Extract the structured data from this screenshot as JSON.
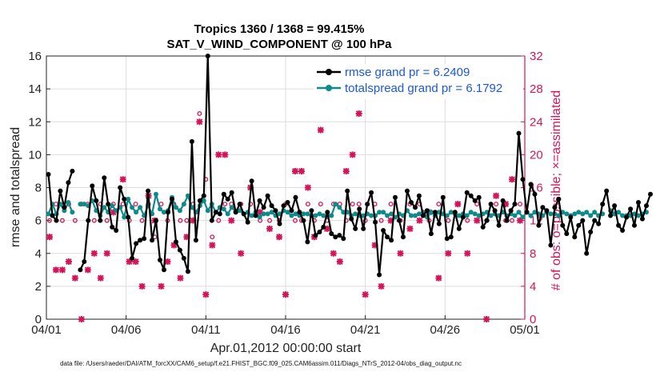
{
  "chart_data": {
    "type": "line",
    "title": "Tropics 1360 / 1368 = 99.415%",
    "subtitle": "SAT_V_WIND_COMPONENT @ 100 hPa",
    "xlabel": "Apr.01,2012 00:00:00 start",
    "ylabel": "rmse and totalspread",
    "y2label": "# of obs: o=possible; ×=assimilated",
    "footer": "data file: /Users/raeder/DAI/ATM_forcXX/CAM6_setup/f.e21.FHIST_BGC.f09_025.CAM6assim.011/Diags_NTrS_2012-04/obs_diag_output.nc",
    "x_ticks": [
      "04/01",
      "04/06",
      "04/11",
      "04/16",
      "04/21",
      "04/26",
      "05/01"
    ],
    "x_tick_days": [
      0,
      5,
      10,
      15,
      20,
      25,
      30
    ],
    "xlim": [
      0,
      30
    ],
    "ylim": [
      0,
      16
    ],
    "y_ticks": [
      "0",
      "2",
      "4",
      "6",
      "8",
      "10",
      "12",
      "14",
      "16"
    ],
    "y2lim": [
      0,
      32
    ],
    "y2_ticks": [
      "0",
      "4",
      "8",
      "12",
      "16",
      "20",
      "24",
      "28",
      "32"
    ],
    "colors": {
      "rmse": "#000000",
      "spread": "#0f8a8a",
      "obs": "#d4145a",
      "legend_text": "#1a57e6"
    },
    "series": [
      {
        "name": "rmse grand pr = 6.2409",
        "color": "#000000",
        "x0": 0.125,
        "dx": 0.25,
        "values": [
          8.8,
          6.3,
          6.0,
          7.8,
          6.8,
          8.3,
          9.0,
          null,
          3.0,
          3.5,
          6.0,
          8.1,
          7.2,
          6.0,
          8.6,
          7.0,
          5.6,
          5.4,
          8.0,
          7.3,
          6.2,
          3.7,
          4.6,
          4.8,
          4.9,
          7.8,
          4.8,
          6.0,
          3.6,
          3.0,
          6.5,
          7.3,
          4.7,
          4.2,
          3.7,
          2.9,
          10.8,
          4.8,
          7.2,
          7.5,
          16.0,
          6.0,
          6.5,
          6.4,
          7.6,
          7.3,
          7.7,
          6.5,
          7.0,
          6.4,
          5.9,
          8.4,
          6.3,
          7.2,
          6.8,
          7.5,
          6.9,
          6.6,
          5.8,
          6.9,
          7.1,
          6.6,
          7.4,
          6.5,
          6.0,
          4.7,
          6.6,
          5.1,
          5.3,
          5.6,
          6.5,
          5.2,
          5.0,
          5.1,
          4.9,
          7.8,
          6.1,
          5.5,
          6.7,
          5.5,
          7.0,
          7.7,
          5.9,
          2.7,
          5.4,
          5.0,
          4.8,
          7.4,
          6.0,
          5.0,
          7.8,
          7.1,
          6.8,
          7.5,
          6.3,
          6.6,
          5.2,
          6.5,
          5.8,
          7.4,
          4.9,
          5.0,
          6.5,
          5.5,
          6.2,
          7.7,
          7.5,
          7.2,
          7.4,
          5.6,
          6.0,
          7.0,
          6.6,
          5.7,
          7.2,
          6.0,
          6.6,
          7.0,
          11.3,
          8.5,
          6.5,
          8.2,
          7.6,
          5.7,
          6.8,
          6.6,
          4.5,
          6.8,
          7.3,
          5.7,
          5.2,
          6.2,
          5.0,
          5.7,
          6.0,
          4.0,
          5.3,
          6.0,
          5.8,
          7.0,
          7.8,
          6.3,
          6.9,
          5.7,
          5.4,
          6.2,
          6.7,
          5.7,
          7.1,
          6.1,
          6.9,
          7.6
        ]
      },
      {
        "name": "totalspread grand pr = 6.1792",
        "color": "#0f8a8a",
        "x0": 0.125,
        "dx": 0.25,
        "values": [
          6.4,
          7.0,
          6.4,
          7.0,
          6.6,
          7.1,
          6.5,
          null,
          7.0,
          7.0,
          6.9,
          7.2,
          6.6,
          6.3,
          6.8,
          6.5,
          6.9,
          6.6,
          6.8,
          6.2,
          7.3,
          6.8,
          6.5,
          6.8,
          6.3,
          6.9,
          6.4,
          7.6,
          6.7,
          6.5,
          6.6,
          7.4,
          6.8,
          6.6,
          7.0,
          7.5,
          6.8,
          6.5,
          6.9,
          7.2,
          6.6,
          7.0,
          6.5,
          6.8,
          6.7,
          6.4,
          6.8,
          6.5,
          6.6,
          6.4,
          6.5,
          6.3,
          6.5,
          6.2,
          6.4,
          6.4,
          6.5,
          6.3,
          6.4,
          6.6,
          6.5,
          6.3,
          6.4,
          6.3,
          6.4,
          6.4,
          6.3,
          6.3,
          6.4,
          6.3,
          6.3,
          6.3,
          7.0,
          6.8,
          6.5,
          6.5,
          6.3,
          6.4,
          6.3,
          6.3,
          6.4,
          6.3,
          6.3,
          6.5,
          6.5,
          6.3,
          6.4,
          6.2,
          6.4,
          6.3,
          6.6,
          6.3,
          6.3,
          6.4,
          6.5,
          6.2,
          6.5,
          6.3,
          6.5,
          6.4,
          6.3,
          6.5,
          6.4,
          6.3,
          6.4,
          6.3,
          6.5,
          6.4,
          6.3,
          6.4,
          6.5,
          6.3,
          6.4,
          6.3,
          6.5,
          6.3,
          6.4,
          6.3,
          6.5,
          6.2,
          6.5,
          6.3,
          6.5,
          6.4,
          6.3,
          6.5,
          6.4,
          6.4,
          6.3,
          6.5,
          6.4,
          6.3,
          6.4,
          6.5,
          6.4,
          6.5,
          6.3,
          6.5,
          6.3,
          6.4,
          null,
          6.6,
          6.4,
          6.5,
          6.3,
          6.3,
          6.3,
          6.4,
          6.3,
          6.4,
          6.5
        ]
      }
    ],
    "obs_counts": [
      {
        "day": 0.2,
        "possible": 12,
        "assimilated": 10
      },
      {
        "day": 0.6,
        "possible": 14,
        "assimilated": 6
      },
      {
        "day": 1.0,
        "possible": 12,
        "assimilated": 6
      },
      {
        "day": 1.4,
        "possible": 14,
        "assimilated": 7
      },
      {
        "day": 1.8,
        "possible": 12,
        "assimilated": 5
      },
      {
        "day": 2.2,
        "possible": 14,
        "assimilated": 0
      },
      {
        "day": 2.6,
        "possible": 14,
        "assimilated": 6
      },
      {
        "day": 3.0,
        "possible": 12,
        "assimilated": 8
      },
      {
        "day": 3.4,
        "possible": 14,
        "assimilated": 5
      },
      {
        "day": 3.8,
        "possible": 12,
        "assimilated": 8
      },
      {
        "day": 4.2,
        "possible": 14,
        "assimilated": 13
      },
      {
        "day": 4.8,
        "possible": 14,
        "assimilated": 17
      },
      {
        "day": 5.2,
        "possible": 12,
        "assimilated": 7
      },
      {
        "day": 5.6,
        "possible": 14,
        "assimilated": 7
      },
      {
        "day": 6.0,
        "possible": 12,
        "assimilated": 4
      },
      {
        "day": 6.4,
        "possible": 14,
        "assimilated": 15
      },
      {
        "day": 6.8,
        "possible": 10,
        "assimilated": 12
      },
      {
        "day": 7.2,
        "possible": 14,
        "assimilated": 4
      },
      {
        "day": 7.6,
        "possible": 12,
        "assimilated": 7
      },
      {
        "day": 8.0,
        "possible": 14,
        "assimilated": 9
      },
      {
        "day": 8.4,
        "possible": 12,
        "assimilated": 5
      },
      {
        "day": 8.8,
        "possible": 12,
        "assimilated": 10
      },
      {
        "day": 9.2,
        "possible": 14,
        "assimilated": 12
      },
      {
        "day": 9.6,
        "possible": 25,
        "assimilated": 24
      },
      {
        "day": 10.0,
        "possible": 17,
        "assimilated": 3
      },
      {
        "day": 10.4,
        "possible": 10,
        "assimilated": 9
      },
      {
        "day": 10.8,
        "possible": 12,
        "assimilated": 20
      },
      {
        "day": 11.2,
        "possible": 14,
        "assimilated": 20
      },
      {
        "day": 11.6,
        "possible": 14,
        "assimilated": 12
      },
      {
        "day": 12.2,
        "possible": 14,
        "assimilated": 8
      },
      {
        "day": 12.8,
        "possible": 14,
        "assimilated": 16
      },
      {
        "day": 13.4,
        "possible": 12,
        "assimilated": 13
      },
      {
        "day": 14.0,
        "possible": 12,
        "assimilated": 11
      },
      {
        "day": 14.6,
        "possible": 12,
        "assimilated": 10
      },
      {
        "day": 15.0,
        "possible": 14,
        "assimilated": 3
      },
      {
        "day": 15.6,
        "possible": 12,
        "assimilated": 18
      },
      {
        "day": 16.0,
        "possible": 12,
        "assimilated": 18
      },
      {
        "day": 16.4,
        "possible": 14,
        "assimilated": 16
      },
      {
        "day": 16.8,
        "possible": 12,
        "assimilated": 10
      },
      {
        "day": 17.2,
        "possible": 14,
        "assimilated": 23
      },
      {
        "day": 17.6,
        "possible": 12,
        "assimilated": 11
      },
      {
        "day": 18.0,
        "possible": 14,
        "assimilated": 8
      },
      {
        "day": 18.4,
        "possible": 14,
        "assimilated": 7
      },
      {
        "day": 18.8,
        "possible": 12,
        "assimilated": 18
      },
      {
        "day": 19.2,
        "possible": 14,
        "assimilated": 20
      },
      {
        "day": 19.6,
        "possible": 14,
        "assimilated": 25
      },
      {
        "day": 20.0,
        "possible": 12,
        "assimilated": 3
      },
      {
        "day": 20.6,
        "possible": 14,
        "assimilated": 9
      },
      {
        "day": 21.0,
        "possible": 12,
        "assimilated": 4
      },
      {
        "day": 21.6,
        "possible": 14,
        "assimilated": 12
      },
      {
        "day": 22.2,
        "possible": 12,
        "assimilated": 8
      },
      {
        "day": 22.8,
        "possible": 14,
        "assimilated": 11
      },
      {
        "day": 23.4,
        "possible": 14,
        "assimilated": 12
      },
      {
        "day": 24.0,
        "possible": 12,
        "assimilated": 13
      },
      {
        "day": 24.6,
        "possible": 14,
        "assimilated": 5
      },
      {
        "day": 25.2,
        "possible": 12,
        "assimilated": 8
      },
      {
        "day": 25.8,
        "possible": 14,
        "assimilated": 14
      },
      {
        "day": 26.4,
        "possible": 12,
        "assimilated": 8
      },
      {
        "day": 27.0,
        "possible": 14,
        "assimilated": 12
      },
      {
        "day": 27.6,
        "possible": 12,
        "assimilated": 0
      },
      {
        "day": 28.2,
        "possible": 14,
        "assimilated": 15
      },
      {
        "day": 28.8,
        "possible": 12,
        "assimilated": 14
      },
      {
        "day": 29.2,
        "possible": 12,
        "assimilated": 17
      },
      {
        "day": 29.7,
        "possible": 14,
        "assimilated": 12
      }
    ]
  }
}
